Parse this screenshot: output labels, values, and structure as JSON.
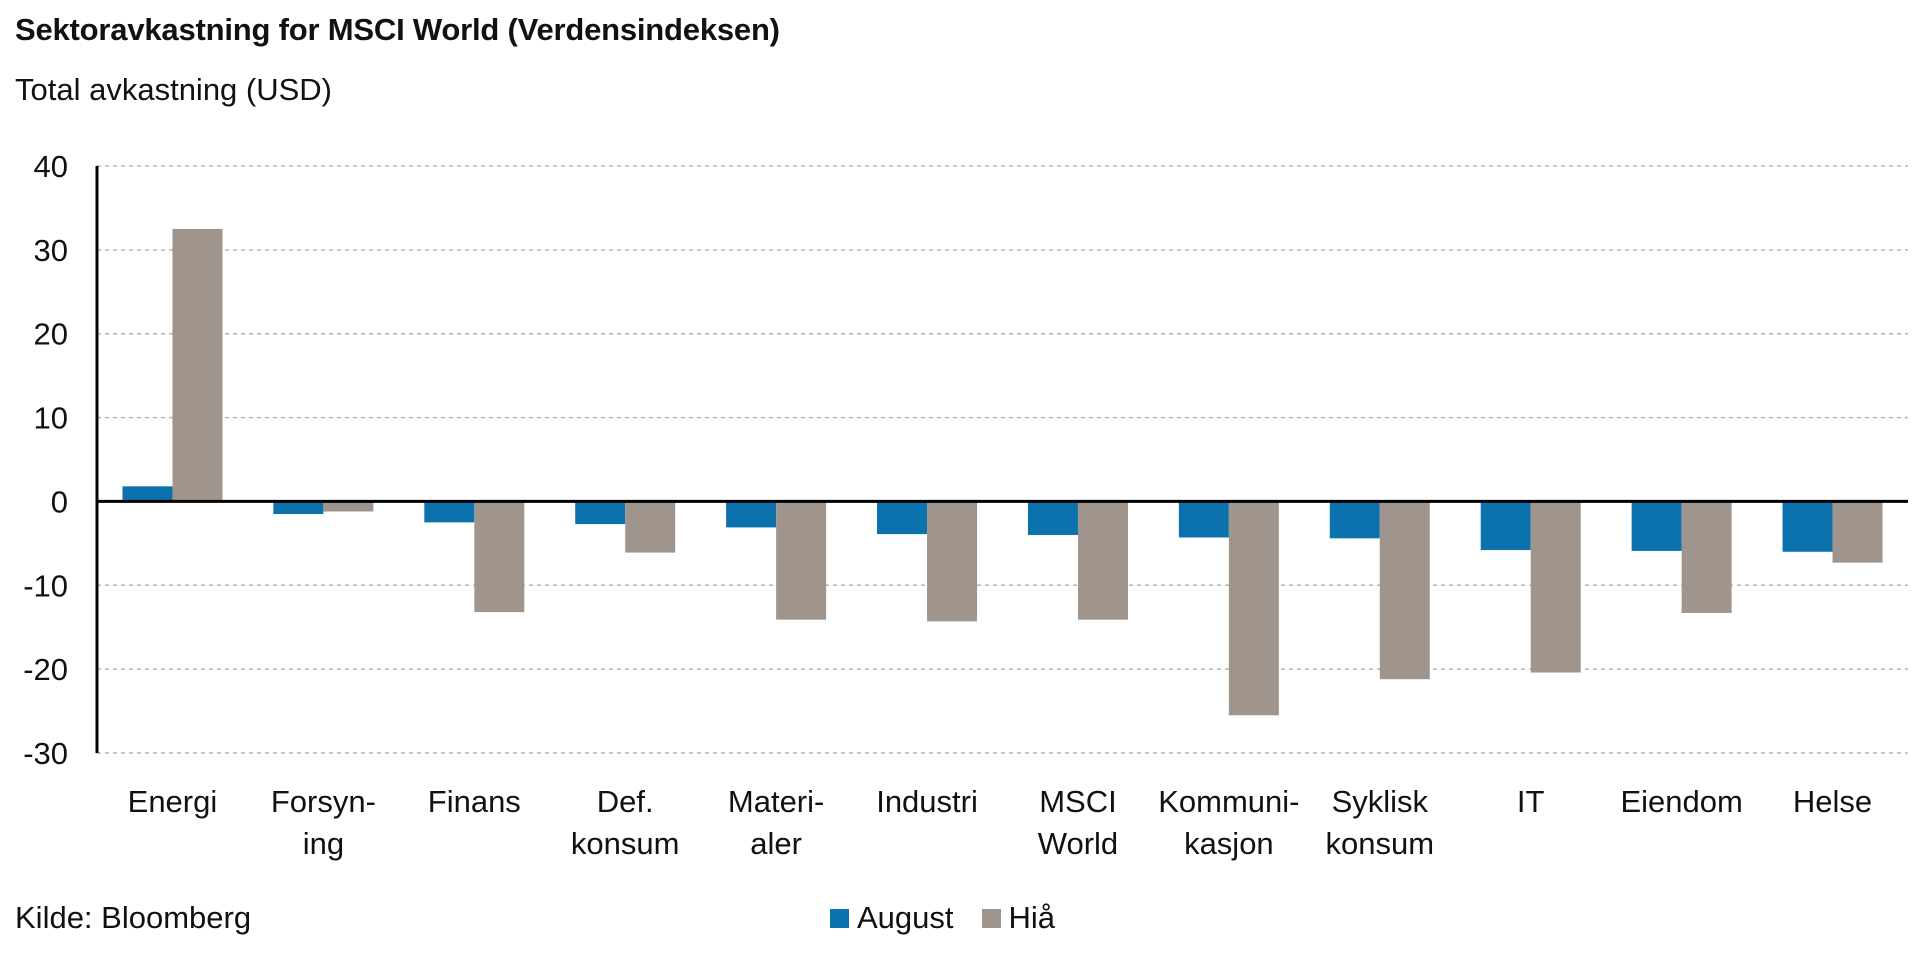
{
  "title": "Sektoravkastning for MSCI World (Verdensindeksen)",
  "subtitle": "Total avkastning (USD)",
  "source": "Kilde: Bloomberg",
  "colors": {
    "august": "#0b72ad",
    "hia": "#a0958c",
    "grid": "#b5b5b5",
    "axis": "#000000"
  },
  "chart_data": {
    "type": "bar",
    "categories": [
      [
        "Energi"
      ],
      [
        "Forsyn-",
        "ing"
      ],
      [
        "Finans"
      ],
      [
        "Def.",
        "konsum"
      ],
      [
        "Materi-",
        "aler"
      ],
      [
        "Industri"
      ],
      [
        "MSCI",
        "World"
      ],
      [
        "Kommuni-",
        "kasjon"
      ],
      [
        "Syklisk",
        "konsum"
      ],
      [
        "IT"
      ],
      [
        "Eiendom"
      ],
      [
        "Helse"
      ]
    ],
    "series": [
      {
        "name": "August",
        "values": [
          1.8,
          -1.5,
          -2.5,
          -2.7,
          -3.1,
          -3.9,
          -4.0,
          -4.3,
          -4.4,
          -5.8,
          -5.9,
          -6.0
        ]
      },
      {
        "name": "Hiå",
        "values": [
          32.5,
          -1.2,
          -13.2,
          -6.1,
          -14.1,
          -14.3,
          -14.1,
          -25.5,
          -21.2,
          -20.4,
          -13.3,
          -7.3
        ]
      }
    ],
    "yticks": [
      40,
      30,
      20,
      10,
      0,
      -10,
      -20,
      -30
    ],
    "ylim": [
      -30,
      40
    ],
    "grid": true,
    "legend_position": "bottom-center"
  }
}
